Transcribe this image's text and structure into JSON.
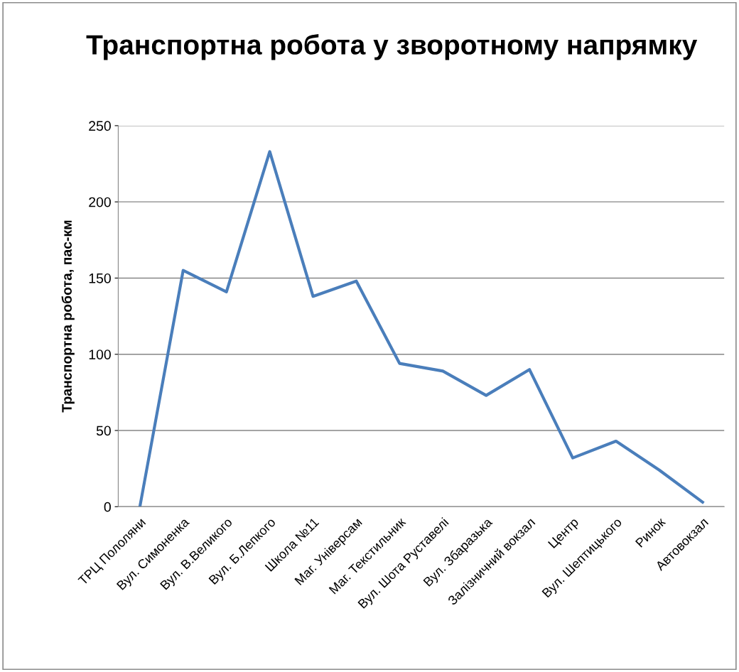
{
  "chart_data": {
    "type": "line",
    "title": "Транспортна робота у зворотному напрямку",
    "ylabel": "Транспортна робота, пас-км",
    "categories": [
      "ТРЦ Пололяни",
      "Вул. Симоненка",
      "Вул. В.Великого",
      "Вул. Б.Лепкого",
      "Школа №11",
      "Маг. Універсам",
      "Маг. Текстильник",
      "Вул. Шота Руставелі",
      "Вул. Збаразька",
      "Залізничний вокзал",
      "Центр",
      "Вул. Шептицького",
      "Ринок",
      "Автовокзал"
    ],
    "series": [
      {
        "color": "#4a7ebb",
        "values": [
          0,
          155,
          141,
          233,
          138,
          148,
          94,
          89,
          73,
          90,
          32,
          43,
          24,
          3
        ]
      }
    ],
    "ylim": [
      0,
      250
    ],
    "yticks": [
      0,
      50,
      100,
      150,
      200,
      250
    ],
    "grid": "y",
    "legend": false,
    "marker": "none",
    "line_style": "solid"
  }
}
